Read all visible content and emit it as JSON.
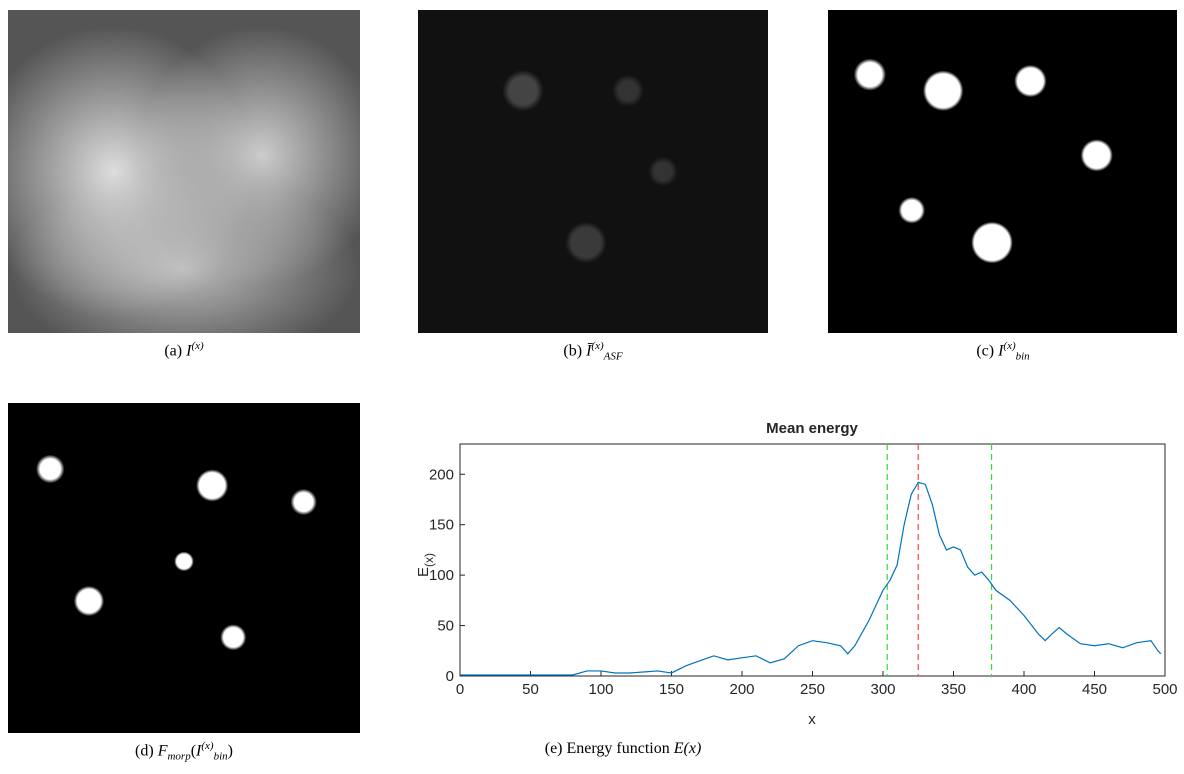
{
  "panels": [
    {
      "label": "(a)",
      "symbol": "I",
      "sup": "(x)"
    },
    {
      "label": "(b)",
      "symbol": "Ī",
      "sup": "(x)",
      "sub": "ASF"
    },
    {
      "label": "(c)",
      "symbol": "I",
      "sup": "(x)",
      "sub": "bin"
    },
    {
      "label": "(d)",
      "symbol": "F",
      "sub_outer": "morp",
      "inner": "I",
      "sup": "(x)",
      "sub": "bin"
    },
    {
      "label": "(e)",
      "text": "Energy function",
      "symbol": "E(x)"
    }
  ],
  "chart_data": {
    "type": "line",
    "title": "Mean energy",
    "xlabel": "x",
    "ylabel": "E",
    "ylabel_sub": "(x)",
    "xlim": [
      0,
      500
    ],
    "xticks": [
      0,
      50,
      100,
      150,
      200,
      250,
      300,
      350,
      400,
      450,
      500
    ],
    "ylim": [
      0,
      230
    ],
    "yticks": [
      0,
      50,
      100,
      150,
      200
    ],
    "series": [
      {
        "color": "#0072bd",
        "x": [
          0,
          20,
          40,
          60,
          80,
          90,
          100,
          110,
          120,
          130,
          140,
          150,
          160,
          170,
          180,
          190,
          200,
          210,
          220,
          230,
          240,
          250,
          260,
          270,
          275,
          280,
          290,
          300,
          305,
          310,
          315,
          320,
          325,
          330,
          335,
          340,
          345,
          350,
          355,
          360,
          365,
          370,
          375,
          380,
          390,
          400,
          410,
          415,
          420,
          425,
          430,
          440,
          450,
          460,
          470,
          480,
          490,
          495,
          497
        ],
        "values": [
          1,
          1,
          1,
          1,
          1,
          5,
          5,
          3,
          3,
          4,
          5,
          3,
          10,
          15,
          20,
          16,
          18,
          20,
          13,
          17,
          30,
          35,
          33,
          30,
          22,
          30,
          55,
          85,
          95,
          110,
          150,
          180,
          192,
          190,
          170,
          140,
          125,
          128,
          125,
          108,
          100,
          103,
          95,
          85,
          75,
          60,
          42,
          35,
          42,
          48,
          42,
          32,
          30,
          32,
          28,
          33,
          35,
          25,
          22
        ]
      }
    ],
    "vlines": [
      {
        "x": 303,
        "color": "#33dd33"
      },
      {
        "x": 325,
        "color": "#ff4444"
      },
      {
        "x": 377,
        "color": "#33dd33"
      }
    ]
  }
}
